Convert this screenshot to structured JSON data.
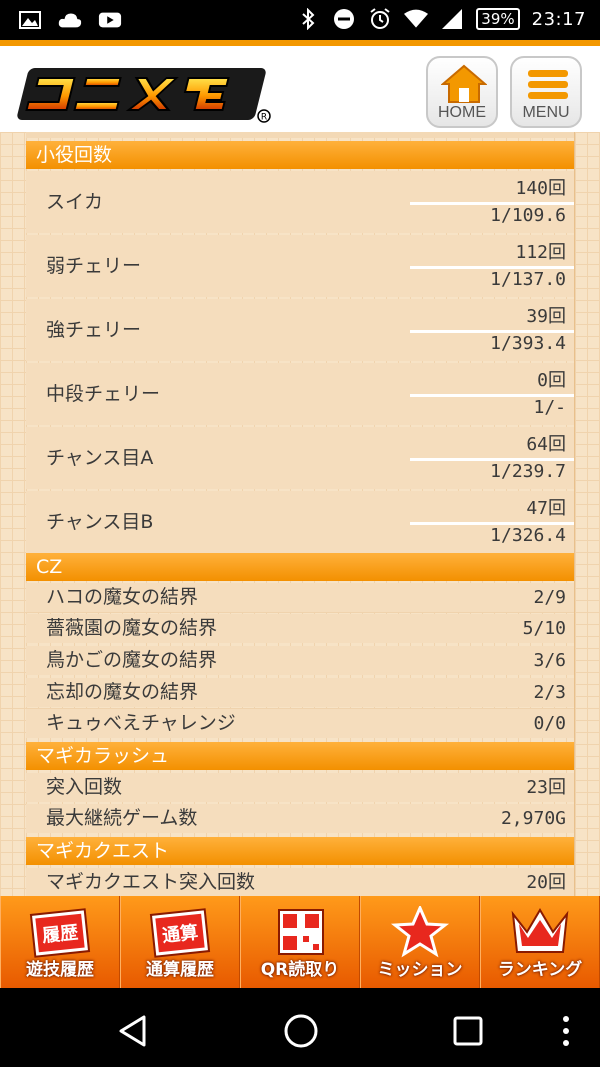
{
  "status_bar": {
    "battery": "39%",
    "time": "23:17"
  },
  "header": {
    "logo_text": "ユニメモ",
    "home_label": "HOME",
    "menu_label": "MENU"
  },
  "sections": [
    {
      "title": "小役回数"
    },
    {
      "title": "CZ"
    },
    {
      "title": "マギカラッシュ"
    },
    {
      "title": "マギカクエスト"
    }
  ],
  "small_roles": [
    {
      "name": "スイカ",
      "count": "140回",
      "prob": "1/109.6"
    },
    {
      "name": "弱チェリー",
      "count": "112回",
      "prob": "1/137.0"
    },
    {
      "name": "強チェリー",
      "count": "39回",
      "prob": "1/393.4"
    },
    {
      "name": "中段チェリー",
      "count": "0回",
      "prob": "1/-"
    },
    {
      "name": "チャンス目A",
      "count": "64回",
      "prob": "1/239.7"
    },
    {
      "name": "チャンス目B",
      "count": "47回",
      "prob": "1/326.4"
    }
  ],
  "cz": [
    {
      "name": "ハコの魔女の結界",
      "value": "2/9"
    },
    {
      "name": "薔薇園の魔女の結界",
      "value": "5/10"
    },
    {
      "name": "鳥かごの魔女の結界",
      "value": "3/6"
    },
    {
      "name": "忘却の魔女の結界",
      "value": "2/3"
    },
    {
      "name": "キュゥべえチャレンジ",
      "value": "0/0"
    }
  ],
  "magica_rush": [
    {
      "name": "突入回数",
      "value": "23回"
    },
    {
      "name": "最大継続ゲーム数",
      "value": "2,970G"
    }
  ],
  "magica_quest": [
    {
      "name": "マギカクエスト突入回数",
      "value": "20回"
    }
  ],
  "tabbar": {
    "items": [
      {
        "icon_text": "履歴",
        "label": "遊技履歴"
      },
      {
        "icon_text": "通算",
        "label": "通算履歴"
      },
      {
        "icon_text": "",
        "label": "QR読取り"
      },
      {
        "icon_text": "",
        "label": "ミッション"
      },
      {
        "icon_text": "",
        "label": "ランキング"
      }
    ]
  },
  "colors": {
    "accent": "#f39800",
    "row_bg": "#f5ddbd",
    "tab_bg": "#ff7a00"
  }
}
